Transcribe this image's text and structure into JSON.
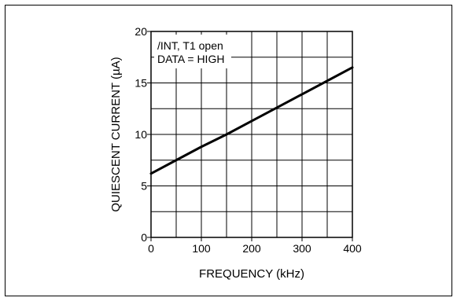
{
  "chart_data": {
    "type": "line",
    "xlabel": "FREQUENCY (kHz)",
    "ylabel": "QUIESCENT CURRENT (µA)",
    "xlim": [
      0,
      400
    ],
    "ylim": [
      0,
      20
    ],
    "x_ticks": [
      0,
      100,
      200,
      300,
      400
    ],
    "y_ticks": [
      0,
      5,
      10,
      15,
      20
    ],
    "x_tick_labels": [
      "0",
      "100",
      "200",
      "300",
      "400"
    ],
    "y_tick_labels": [
      "0",
      "5",
      "10",
      "15",
      "20"
    ],
    "x_grid_step": 50,
    "y_grid_step": 2.5,
    "grid": true,
    "annotations": [
      "/INT, T1 open",
      "DATA = HIGH"
    ],
    "series": [
      {
        "x": [
          0,
          50,
          100,
          150,
          200,
          250,
          300,
          350,
          400
        ],
        "y": [
          6.2,
          7.5,
          8.8,
          10.0,
          11.3,
          12.6,
          13.9,
          15.2,
          16.5
        ]
      }
    ],
    "colors": {
      "line": "#000000",
      "grid": "#000000",
      "border": "#000000"
    }
  }
}
